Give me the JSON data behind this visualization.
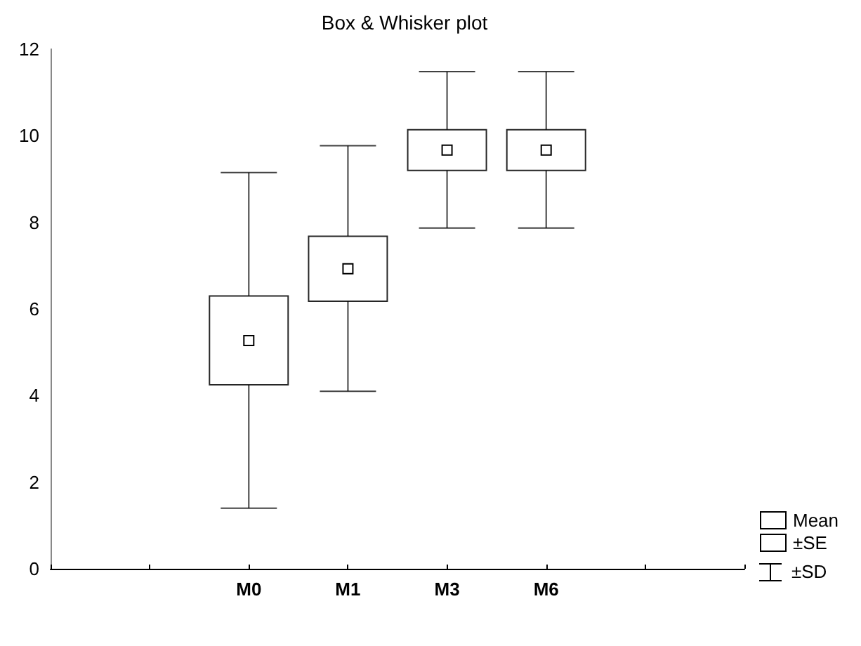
{
  "chart_data": {
    "type": "box",
    "title": "Box & Whisker plot",
    "categories": [
      null,
      null,
      "M0",
      "M1",
      "M3",
      "M6",
      null,
      null
    ],
    "ylim": [
      0,
      12
    ],
    "yticks": [
      0,
      2,
      4,
      6,
      8,
      10,
      12
    ],
    "legend": "bottom right",
    "annotations": [
      "±SD"
    ],
    "series": [
      {
        "name": "Mean",
        "type": "scatter",
        "marker": "square",
        "color": "#000000",
        "values": [
          null,
          null,
          5.27,
          6.93,
          9.67,
          9.67,
          null,
          null
        ]
      },
      {
        "name": "±SE",
        "color": "#000000",
        "boxes": [
          null,
          null,
          {
            "low": 1.4,
            "q1": 4.25,
            "q3": 6.3,
            "high": 9.15
          },
          {
            "low": 4.1,
            "q1": 6.18,
            "q3": 7.68,
            "high": 9.77
          },
          {
            "low": 7.87,
            "q1": 9.2,
            "q3": 10.14,
            "high": 11.48
          },
          {
            "low": 7.87,
            "q1": 9.2,
            "q3": 10.14,
            "high": 11.48
          },
          null,
          null
        ]
      }
    ]
  }
}
